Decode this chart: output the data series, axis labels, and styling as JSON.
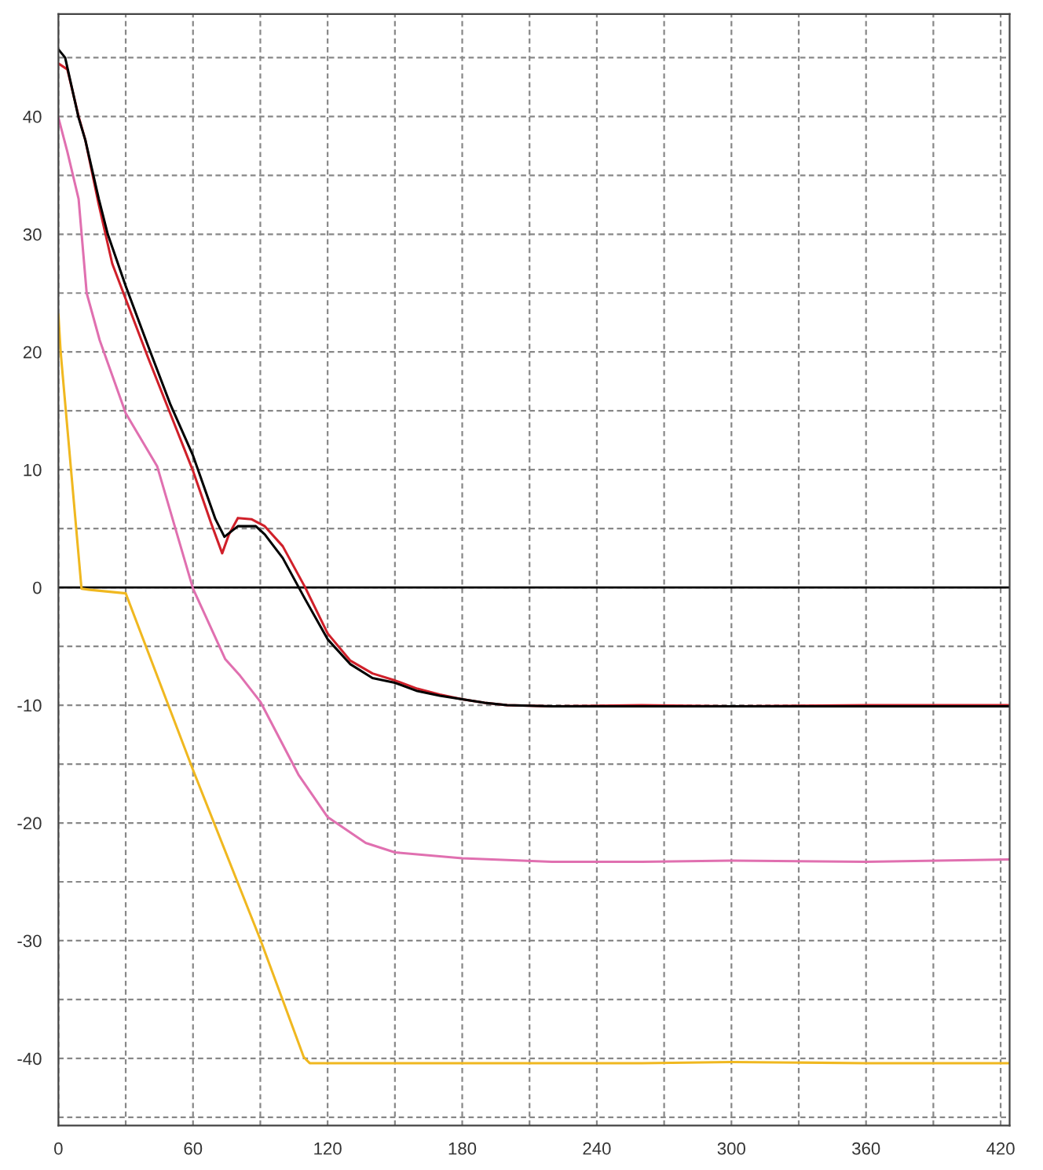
{
  "chart_data": {
    "type": "line",
    "xlim": [
      0,
      424
    ],
    "ylim": [
      -45.7,
      48.7
    ],
    "xticks": [
      0,
      {
        "value": 30,
        "label": null
      },
      60,
      {
        "value": 90,
        "label": null
      },
      120,
      {
        "value": 150,
        "label": null
      },
      180,
      {
        "value": 210,
        "label": null
      },
      240,
      {
        "value": 270,
        "label": null
      },
      300,
      {
        "value": 330,
        "label": null
      },
      360,
      {
        "value": 390,
        "label": null
      },
      420
    ],
    "yticks": [
      {
        "value": -45,
        "label": null
      },
      -40,
      {
        "value": -35,
        "label": null
      },
      -30,
      {
        "value": -25,
        "label": null
      },
      -20,
      {
        "value": -15,
        "label": null
      },
      -10,
      {
        "value": -5,
        "label": null
      },
      0,
      {
        "value": 5,
        "label": null
      },
      10,
      {
        "value": 15,
        "label": null
      },
      20,
      {
        "value": 25,
        "label": null
      },
      30,
      {
        "value": 35,
        "label": null
      },
      40,
      {
        "value": 45,
        "label": null
      }
    ],
    "grid": true,
    "ref_lines": [
      {
        "axis": "y",
        "value": 0,
        "color": "#000000"
      }
    ],
    "series": [
      {
        "color": "#e070b0",
        "x": [
          0,
          4,
          9,
          12.6,
          18.4,
          30,
          44,
          60,
          74.4,
          81,
          90,
          107,
          120,
          137,
          150,
          180,
          220,
          260,
          300,
          360,
          424
        ],
        "values": [
          39.9,
          37,
          33,
          25,
          21,
          14.8,
          10.3,
          -0.1,
          -6.1,
          -7.5,
          -9.7,
          -15.9,
          -19.5,
          -21.7,
          -22.5,
          -23,
          -23.3,
          -23.3,
          -23.2,
          -23.3,
          -23.1
        ]
      },
      {
        "color": "#f0b820",
        "x": [
          0,
          1,
          10.3,
          14,
          30,
          60,
          90,
          109.4,
          112,
          150,
          200,
          260,
          300,
          360,
          424
        ],
        "values": [
          23.2,
          20,
          -0.1,
          -0.2,
          -0.5,
          -15.5,
          -29.9,
          -39.9,
          -40.4,
          -40.4,
          -40.4,
          -40.4,
          -40.3,
          -40.4,
          -40.4
        ]
      },
      {
        "color": "#d0202a",
        "x": [
          0,
          4,
          9,
          12,
          18,
          24,
          30,
          40,
          50,
          60,
          68,
          73,
          76,
          80,
          86,
          92,
          100,
          110,
          120,
          130,
          140,
          150,
          160,
          170,
          180,
          190,
          200,
          220,
          260,
          300,
          360,
          424
        ],
        "values": [
          44.5,
          44,
          40,
          38,
          32.5,
          27.5,
          24.5,
          19.5,
          14.7,
          9.9,
          5.5,
          2.9,
          4.5,
          5.9,
          5.8,
          5.2,
          3.5,
          0,
          -3.9,
          -6.2,
          -7.3,
          -7.9,
          -8.6,
          -9.1,
          -9.5,
          -9.8,
          -10,
          -10.1,
          -10,
          -10.1,
          -10,
          -10
        ]
      },
      {
        "color": "#000000",
        "x": [
          0,
          3,
          9,
          12,
          18,
          22,
          30,
          40,
          50,
          60,
          70,
          74,
          76,
          80,
          88,
          92,
          100,
          110,
          120,
          130,
          140,
          150,
          160,
          170,
          180,
          190,
          200,
          220,
          260,
          300,
          360,
          424
        ],
        "values": [
          45.7,
          45,
          39.9,
          38,
          33,
          30,
          25.6,
          20.5,
          15.5,
          11.2,
          5.8,
          4.3,
          4.6,
          5.2,
          5.2,
          4.5,
          2.5,
          -1,
          -4.4,
          -6.5,
          -7.7,
          -8.1,
          -8.8,
          -9.2,
          -9.5,
          -9.8,
          -10,
          -10.1,
          -10.1,
          -10.1,
          -10.1,
          -10.1
        ]
      }
    ]
  }
}
